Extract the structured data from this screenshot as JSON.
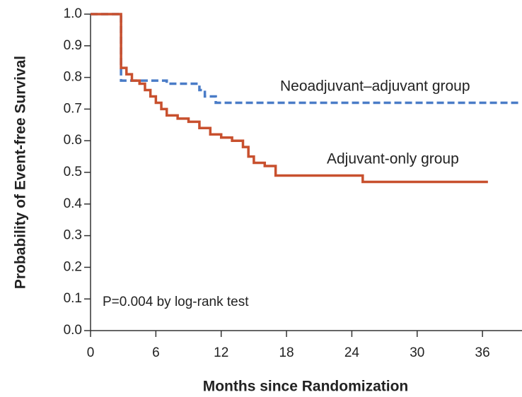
{
  "chart_data": {
    "type": "line",
    "step": true,
    "xlabel": "Months since Randomization",
    "ylabel": "Probability of Event-free Survival",
    "annotations": [
      "P=0.004 by log-rank test"
    ],
    "xlim": [
      0,
      39.5
    ],
    "xticks": [
      0,
      6,
      12,
      18,
      24,
      30,
      36
    ],
    "ylim": [
      0,
      1
    ],
    "yticks": [
      {
        "value": 0,
        "label": "0.0"
      },
      0.1,
      0.2,
      0.3,
      0.4,
      0.5,
      0.6,
      0.7,
      0.8,
      0.9,
      {
        "value": 1,
        "label": "1.0"
      }
    ],
    "series": [
      {
        "name": "Neoadjuvant–adjuvant group",
        "color": "#4a7cc7",
        "dashed": true,
        "x": [
          0,
          2.8,
          7,
          10,
          10.5,
          11.5,
          39.5
        ],
        "values": [
          1,
          0.79,
          0.78,
          0.76,
          0.74,
          0.72,
          0.72
        ]
      },
      {
        "name": "Adjuvant-only group",
        "color": "#c8502e",
        "dashed": false,
        "x": [
          0,
          2.8,
          3.3,
          3.8,
          4.5,
          5,
          5.5,
          6,
          6.5,
          7,
          8,
          9,
          10,
          11,
          12,
          13,
          14,
          14.5,
          15,
          16,
          17,
          25,
          36.5
        ],
        "values": [
          1,
          0.83,
          0.81,
          0.79,
          0.78,
          0.76,
          0.74,
          0.72,
          0.7,
          0.68,
          0.67,
          0.66,
          0.64,
          0.62,
          0.61,
          0.6,
          0.58,
          0.55,
          0.53,
          0.52,
          0.49,
          0.47,
          0.47
        ]
      }
    ]
  }
}
